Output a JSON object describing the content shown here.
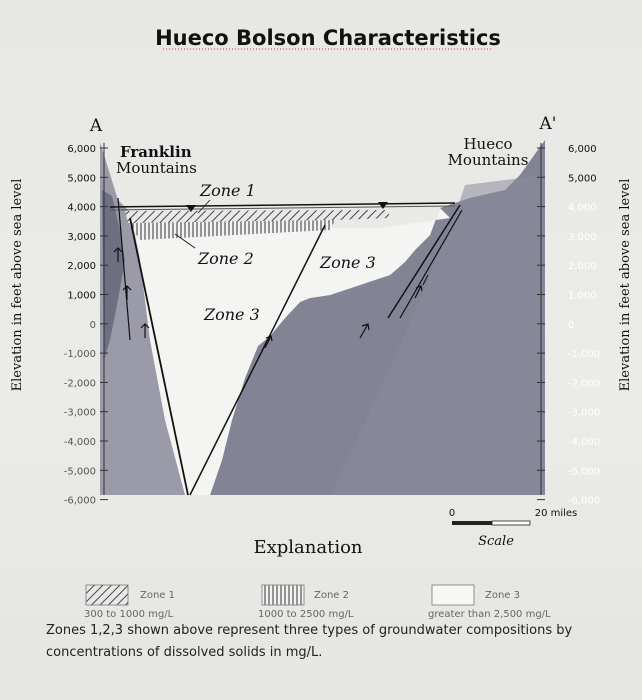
{
  "title": "Hueco Bolson Characteristics",
  "section_left": "A",
  "section_right": "A'",
  "left_mountains": [
    "Franklin",
    "Mountains"
  ],
  "right_mountains": [
    "Hueco",
    "Mountains"
  ],
  "zones": {
    "zone1": "Zone 1",
    "zone2": "Zone 2",
    "zone3_left": "Zone 3",
    "zone3_right": "Zone 3"
  },
  "y_axis_label": "Elevation in feet above sea level",
  "y_ticks": [
    "6,000",
    "5,000",
    "4,000",
    "3,000",
    "2,000",
    "1,000",
    "0",
    "-1,000",
    "-2,000",
    "-3,000",
    "-4,000",
    "-5,000",
    "-6,000"
  ],
  "scale": {
    "start": "0",
    "end": "20 miles",
    "label": "Scale"
  },
  "explanation": "Explanation",
  "legend": [
    {
      "name": "Zone 1",
      "range": "300 to 1000 mg/L"
    },
    {
      "name": "Zone 2",
      "range": "1000 to 2500 mg/L"
    },
    {
      "name": "Zone 3",
      "range": "greater than 2,500 mg/L"
    }
  ],
  "note": [
    "Zones 1,2,3 shown above represent three types of groundwater compositions by",
    "concentrations of dissolved solids in mg/L."
  ]
}
